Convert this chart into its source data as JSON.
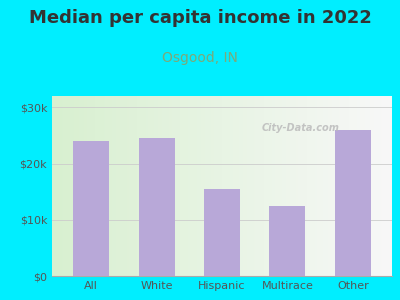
{
  "title": "Median per capita income in 2022",
  "subtitle": "Osgood, IN",
  "categories": [
    "All",
    "White",
    "Hispanic",
    "Multirace",
    "Other"
  ],
  "values": [
    24000,
    24500,
    15500,
    12500,
    26000
  ],
  "bar_color": "#b8a8d8",
  "background_outer": "#00eeff",
  "background_inner": "#eef8ee",
  "title_fontsize": 13,
  "subtitle_fontsize": 10,
  "title_color": "#333333",
  "subtitle_color": "#7aaa7a",
  "tick_color": "#555555",
  "ylim": [
    0,
    32000
  ],
  "yticks": [
    0,
    10000,
    20000,
    30000
  ],
  "ytick_labels": [
    "$0",
    "$10k",
    "$20k",
    "$30k"
  ],
  "watermark": "City-Data.com"
}
